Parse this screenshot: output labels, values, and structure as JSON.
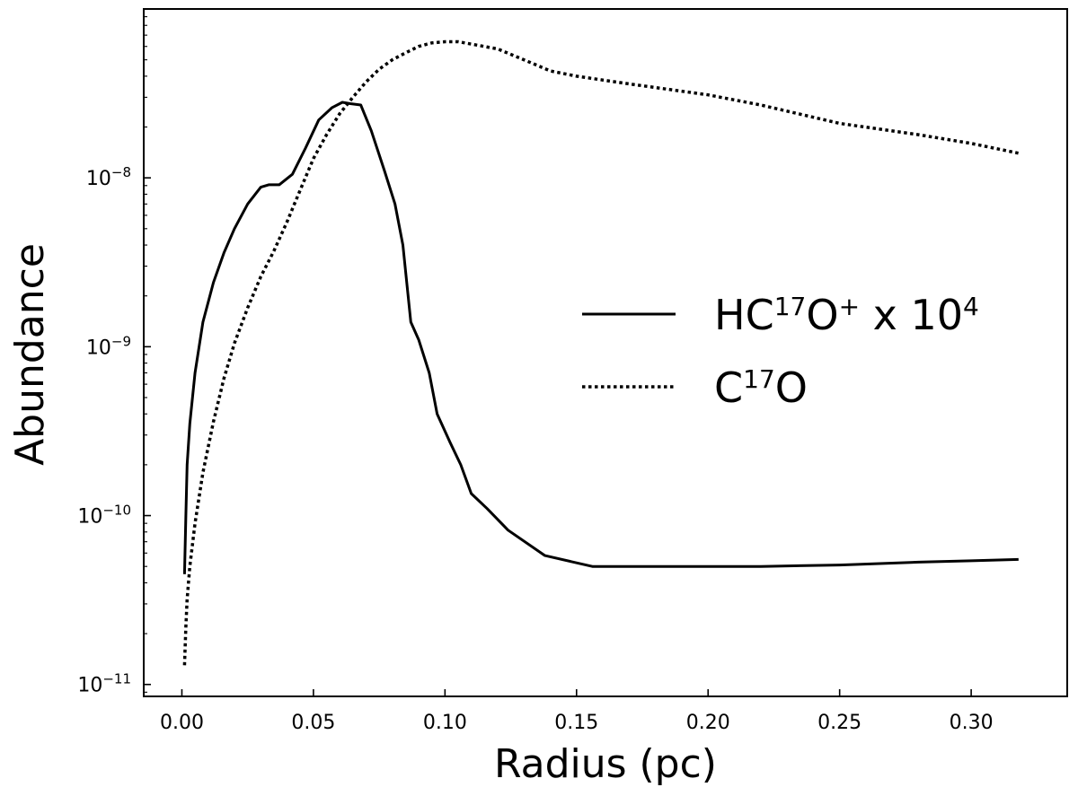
{
  "chart_data": {
    "type": "line",
    "title": "",
    "xlabel": "Radius (pc)",
    "ylabel": "Abundance",
    "xlim": [
      -0.0145,
      0.3365
    ],
    "ylim": [
      8.5e-12,
      1e-07
    ],
    "yscale": "log",
    "grid": false,
    "legend_position": "center-right",
    "x_ticks": [
      0.0,
      0.05,
      0.1,
      0.15,
      0.2,
      0.25,
      0.3
    ],
    "x_tick_labels": [
      "0.00",
      "0.05",
      "0.10",
      "0.15",
      "0.20",
      "0.25",
      "0.30"
    ],
    "y_ticks": [
      {
        "value": 1e-11,
        "base": "10",
        "exp": "−11"
      },
      {
        "value": 1e-10,
        "base": "10",
        "exp": "−10"
      },
      {
        "value": 1e-09,
        "base": "10",
        "exp": "−9"
      },
      {
        "value": 1e-08,
        "base": "10",
        "exp": "−8"
      }
    ],
    "series": [
      {
        "name": "HC17O+ x 10^4",
        "legend": {
          "main": "HC",
          "sup1": "17",
          "mid": "O",
          "sup2": "+",
          "tail": " x 10",
          "sup3": "4"
        },
        "style": "solid",
        "color": "#000000",
        "x": [
          0.001,
          0.0015,
          0.002,
          0.003,
          0.005,
          0.008,
          0.012,
          0.016,
          0.02,
          0.025,
          0.03,
          0.033,
          0.037,
          0.042,
          0.047,
          0.052,
          0.057,
          0.061,
          0.064,
          0.068,
          0.072,
          0.077,
          0.081,
          0.084,
          0.087,
          0.09,
          0.094,
          0.097,
          0.102,
          0.106,
          0.11,
          0.116,
          0.124,
          0.138,
          0.156,
          0.18,
          0.22,
          0.25,
          0.28,
          0.3,
          0.318
        ],
        "y": [
          4.5e-11,
          1e-10,
          2e-10,
          3.5e-10,
          7e-10,
          1.4e-09,
          2.4e-09,
          3.6e-09,
          5e-09,
          7e-09,
          8.8e-09,
          9.1e-09,
          9.1e-09,
          1.05e-08,
          1.5e-08,
          2.2e-08,
          2.6e-08,
          2.8e-08,
          2.75e-08,
          2.7e-08,
          1.9e-08,
          1.1e-08,
          7e-09,
          4e-09,
          1.4e-09,
          1.1e-09,
          7e-10,
          4e-10,
          2.7e-10,
          2e-10,
          1.35e-10,
          1.1e-10,
          8.2e-11,
          5.8e-11,
          5e-11,
          5e-11,
          5e-11,
          5.1e-11,
          5.3e-11,
          5.4e-11,
          5.5e-11
        ]
      },
      {
        "name": "C17O",
        "legend": {
          "main": "C",
          "sup1": "17",
          "mid": "O",
          "sup2": "",
          "tail": "",
          "sup3": ""
        },
        "style": "dotted",
        "color": "#000000",
        "x": [
          0.001,
          0.0015,
          0.002,
          0.003,
          0.005,
          0.008,
          0.012,
          0.016,
          0.02,
          0.025,
          0.03,
          0.035,
          0.04,
          0.045,
          0.05,
          0.055,
          0.06,
          0.065,
          0.07,
          0.075,
          0.08,
          0.085,
          0.09,
          0.095,
          0.1,
          0.105,
          0.11,
          0.12,
          0.13,
          0.14,
          0.15,
          0.17,
          0.2,
          0.22,
          0.25,
          0.28,
          0.3,
          0.318
        ],
        "y": [
          1.3e-11,
          2.2e-11,
          3.2e-11,
          5e-11,
          9e-11,
          1.8e-10,
          3.6e-10,
          6.5e-10,
          1.05e-09,
          1.7e-09,
          2.6e-09,
          3.7e-09,
          5.5e-09,
          8.5e-09,
          1.3e-08,
          1.8e-08,
          2.4e-08,
          3e-08,
          3.7e-08,
          4.4e-08,
          5e-08,
          5.5e-08,
          6e-08,
          6.3e-08,
          6.4e-08,
          6.4e-08,
          6.2e-08,
          5.8e-08,
          5e-08,
          4.3e-08,
          4e-08,
          3.6e-08,
          3.1e-08,
          2.7e-08,
          2.1e-08,
          1.8e-08,
          1.6e-08,
          1.4e-08
        ]
      }
    ]
  }
}
